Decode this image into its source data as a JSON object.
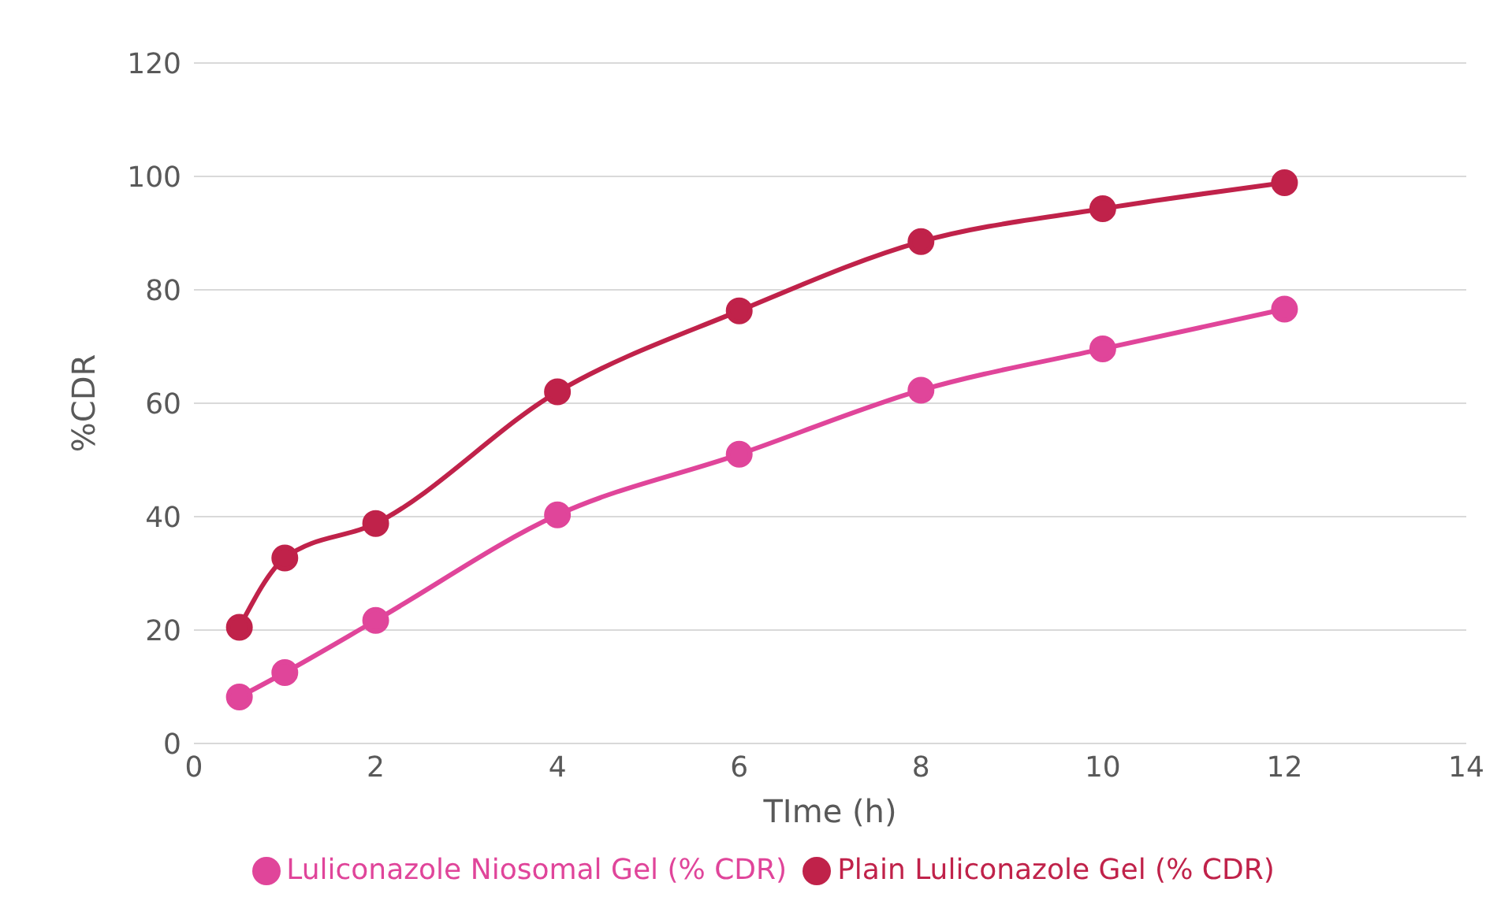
{
  "chart_data": {
    "type": "line",
    "xlabel": "TIme (h)",
    "ylabel": "%CDR",
    "x": [
      0.5,
      1,
      2,
      4,
      6,
      8,
      10,
      12
    ],
    "series": [
      {
        "name": "Plain Luliconazole Gel (% CDR)",
        "color": "#c0224a",
        "values": [
          20.5,
          32.7,
          38.8,
          62,
          76.3,
          88.5,
          94.3,
          98.9
        ]
      },
      {
        "name": "Luliconazole Niosomal Gel (% CDR)",
        "color": "#e0459a",
        "values": [
          8.2,
          12.5,
          21.7,
          40.3,
          51,
          62.3,
          69.6,
          76.6
        ]
      }
    ],
    "xlim": [
      0,
      14
    ],
    "xticks": [
      0,
      2,
      4,
      6,
      8,
      10,
      12,
      14
    ],
    "ylim": [
      0,
      120
    ],
    "yticks": [
      0,
      20,
      40,
      60,
      80,
      100,
      120
    ],
    "grid": "y",
    "legend": "bottom",
    "marker": "circle",
    "line_style": "solid"
  }
}
